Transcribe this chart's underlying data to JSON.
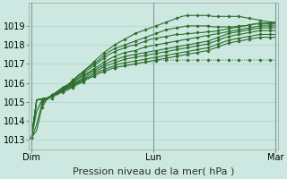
{
  "xlabel": "Pression niveau de la mer( hPa )",
  "bg_color": "#cce8e0",
  "grid_color": "#b0d8d0",
  "line_color": "#2d6e2d",
  "x_ticks": [
    0,
    48,
    96
  ],
  "x_tick_labels": [
    "Dim",
    "Lun",
    "Mar"
  ],
  "ylim": [
    1012.5,
    1020.2
  ],
  "xlim": [
    -1,
    97
  ],
  "yticks": [
    1013,
    1014,
    1015,
    1016,
    1017,
    1018,
    1019
  ],
  "series": [
    [
      1013.1,
      1013.5,
      1014.7,
      1015.15,
      1015.35,
      1015.55,
      1015.75,
      1015.9,
      1016.15,
      1016.4,
      1016.6,
      1016.85,
      1017.1,
      1017.35,
      1017.6,
      1017.8,
      1018.0,
      1018.15,
      1018.3,
      1018.45,
      1018.6,
      1018.7,
      1018.8,
      1018.9,
      1019.0,
      1019.1,
      1019.2,
      1019.3,
      1019.4,
      1019.5,
      1019.55,
      1019.55,
      1019.55,
      1019.55,
      1019.55,
      1019.5,
      1019.5,
      1019.5,
      1019.5,
      1019.5,
      1019.5,
      1019.45,
      1019.4,
      1019.35,
      1019.3,
      1019.25,
      1019.2,
      1019.2
    ],
    [
      1013.1,
      1013.8,
      1014.9,
      1015.15,
      1015.35,
      1015.55,
      1015.75,
      1015.9,
      1016.1,
      1016.35,
      1016.6,
      1016.8,
      1017.0,
      1017.2,
      1017.45,
      1017.65,
      1017.8,
      1017.9,
      1018.0,
      1018.1,
      1018.2,
      1018.3,
      1018.4,
      1018.5,
      1018.6,
      1018.7,
      1018.8,
      1018.85,
      1018.9,
      1018.95,
      1019.0,
      1019.0,
      1019.0,
      1019.0,
      1019.0,
      1018.95,
      1018.95,
      1018.95,
      1018.95,
      1018.95,
      1019.0,
      1019.0,
      1019.05,
      1019.1,
      1019.15,
      1019.15,
      1019.15,
      1019.15
    ],
    [
      1013.1,
      1014.5,
      1015.05,
      1015.15,
      1015.3,
      1015.5,
      1015.7,
      1015.85,
      1016.05,
      1016.25,
      1016.5,
      1016.7,
      1016.9,
      1017.1,
      1017.3,
      1017.5,
      1017.65,
      1017.75,
      1017.85,
      1017.95,
      1018.0,
      1018.1,
      1018.2,
      1018.3,
      1018.35,
      1018.4,
      1018.45,
      1018.5,
      1018.55,
      1018.55,
      1018.6,
      1018.6,
      1018.65,
      1018.65,
      1018.7,
      1018.7,
      1018.75,
      1018.8,
      1018.85,
      1018.9,
      1018.95,
      1019.0,
      1019.05,
      1019.1,
      1019.1,
      1019.1,
      1019.1,
      1019.1
    ],
    [
      1013.1,
      1015.1,
      1015.15,
      1015.2,
      1015.35,
      1015.5,
      1015.65,
      1015.8,
      1016.0,
      1016.2,
      1016.4,
      1016.55,
      1016.75,
      1016.9,
      1017.1,
      1017.25,
      1017.4,
      1017.5,
      1017.6,
      1017.65,
      1017.7,
      1017.8,
      1017.9,
      1017.95,
      1018.0,
      1018.05,
      1018.1,
      1018.15,
      1018.2,
      1018.25,
      1018.3,
      1018.35,
      1018.4,
      1018.45,
      1018.5,
      1018.55,
      1018.6,
      1018.65,
      1018.7,
      1018.75,
      1018.8,
      1018.85,
      1018.9,
      1018.95,
      1019.0,
      1019.0,
      1019.0,
      1019.0
    ],
    [
      1013.1,
      1015.1,
      1015.15,
      1015.2,
      1015.35,
      1015.5,
      1015.65,
      1015.8,
      1015.95,
      1016.1,
      1016.3,
      1016.5,
      1016.65,
      1016.8,
      1016.95,
      1017.1,
      1017.2,
      1017.3,
      1017.4,
      1017.45,
      1017.5,
      1017.55,
      1017.6,
      1017.65,
      1017.7,
      1017.75,
      1017.8,
      1017.85,
      1017.9,
      1017.95,
      1018.0,
      1018.05,
      1018.1,
      1018.15,
      1018.2,
      1018.3,
      1018.4,
      1018.5,
      1018.6,
      1018.65,
      1018.7,
      1018.75,
      1018.8,
      1018.85,
      1018.9,
      1018.9,
      1018.9,
      1018.9
    ],
    [
      1013.1,
      1015.1,
      1015.15,
      1015.2,
      1015.3,
      1015.45,
      1015.6,
      1015.75,
      1015.9,
      1016.05,
      1016.2,
      1016.4,
      1016.55,
      1016.7,
      1016.85,
      1016.95,
      1017.05,
      1017.15,
      1017.25,
      1017.3,
      1017.35,
      1017.4,
      1017.45,
      1017.5,
      1017.55,
      1017.6,
      1017.65,
      1017.7,
      1017.75,
      1017.8,
      1017.85,
      1017.9,
      1017.95,
      1018.0,
      1018.05,
      1018.15,
      1018.25,
      1018.35,
      1018.45,
      1018.5,
      1018.55,
      1018.6,
      1018.65,
      1018.7,
      1018.75,
      1018.75,
      1018.75,
      1018.75
    ],
    [
      1013.1,
      1015.1,
      1015.15,
      1015.2,
      1015.3,
      1015.45,
      1015.6,
      1015.7,
      1015.85,
      1016.0,
      1016.15,
      1016.3,
      1016.45,
      1016.6,
      1016.7,
      1016.8,
      1016.9,
      1017.0,
      1017.05,
      1017.1,
      1017.15,
      1017.2,
      1017.25,
      1017.3,
      1017.35,
      1017.4,
      1017.45,
      1017.5,
      1017.55,
      1017.6,
      1017.65,
      1017.7,
      1017.75,
      1017.8,
      1017.85,
      1017.95,
      1018.05,
      1018.15,
      1018.25,
      1018.3,
      1018.35,
      1018.4,
      1018.45,
      1018.5,
      1018.55,
      1018.55,
      1018.55,
      1018.55
    ],
    [
      1013.1,
      1015.1,
      1015.15,
      1015.2,
      1015.3,
      1015.4,
      1015.55,
      1015.65,
      1015.8,
      1015.95,
      1016.1,
      1016.25,
      1016.35,
      1016.5,
      1016.6,
      1016.7,
      1016.8,
      1016.85,
      1016.9,
      1016.95,
      1017.0,
      1017.05,
      1017.1,
      1017.15,
      1017.2,
      1017.25,
      1017.3,
      1017.35,
      1017.4,
      1017.45,
      1017.5,
      1017.55,
      1017.6,
      1017.65,
      1017.7,
      1017.8,
      1017.9,
      1018.0,
      1018.1,
      1018.15,
      1018.2,
      1018.25,
      1018.3,
      1018.35,
      1018.4,
      1018.4,
      1018.4,
      1018.4
    ]
  ],
  "dotted_series": [
    [
      1013.1,
      1014.6,
      1015.05,
      1015.1,
      1015.2,
      1015.35,
      1015.5,
      1015.6,
      1015.75,
      1015.9,
      1016.05,
      1016.2,
      1016.35,
      1016.5,
      1016.6,
      1016.7,
      1016.8,
      1016.85,
      1016.9,
      1016.95,
      1017.0,
      1017.05,
      1017.1,
      1017.1,
      1017.15,
      1017.2,
      1017.2,
      1017.2,
      1017.2,
      1017.2,
      1017.2,
      1017.2,
      1017.2,
      1017.2,
      1017.2,
      1017.2,
      1017.2,
      1017.2,
      1017.2,
      1017.2,
      1017.2,
      1017.2,
      1017.2,
      1017.2,
      1017.2,
      1017.2,
      1017.2,
      1017.2
    ]
  ],
  "marker": "D",
  "marker_size": 1.8,
  "linewidth": 0.8,
  "font_size_ticks": 7,
  "font_size_xlabel": 8
}
